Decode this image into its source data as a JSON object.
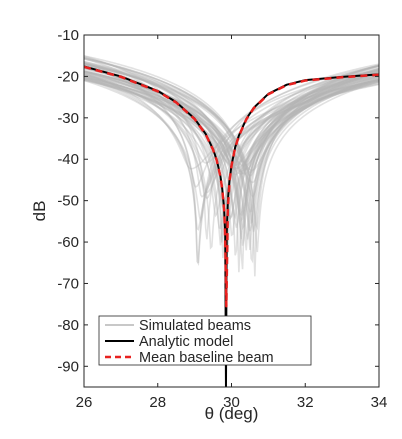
{
  "chart_data": {
    "type": "line",
    "title": "",
    "xlabel": "θ (deg)",
    "ylabel": "dB",
    "xlim": [
      26,
      34
    ],
    "ylim": [
      -95,
      -10
    ],
    "xticks": [
      26,
      28,
      30,
      32,
      34
    ],
    "yticks": [
      -90,
      -80,
      -70,
      -60,
      -50,
      -40,
      -30,
      -20,
      -10
    ],
    "grid": false,
    "legend_position": "bottom-left",
    "notch_center": 29.85,
    "series": [
      {
        "name": "Simulated beams",
        "style": "solid",
        "color": "#b3b3b3",
        "count": 60,
        "notch_range": [
          28.9,
          30.7
        ],
        "min_db_range": [
          -69,
          -40
        ],
        "y_at_26_range": [
          -21,
          -15
        ],
        "y_at_34_range": [
          -22,
          -17
        ]
      },
      {
        "name": "Analytic model",
        "style": "solid",
        "color": "#000000",
        "x": [
          26,
          27,
          28,
          28.5,
          29,
          29.3,
          29.5,
          29.6,
          29.7,
          29.75,
          29.8,
          29.83,
          29.85,
          29.87,
          29.9,
          29.95,
          30,
          30.1,
          30.2,
          30.4,
          30.6,
          31,
          31.5,
          32,
          33,
          34
        ],
        "y": [
          -17.6,
          -20.0,
          -23.5,
          -26.2,
          -30.2,
          -33.9,
          -37.6,
          -40.2,
          -44.1,
          -47.2,
          -52.0,
          -58.0,
          -95,
          -58.0,
          -50.2,
          -44.7,
          -41.5,
          -37.1,
          -34.3,
          -30.3,
          -27.6,
          -24.2,
          -22.0,
          -20.9,
          -20.1,
          -19.5
        ]
      },
      {
        "name": "Mean baseline beam",
        "style": "dashed",
        "color": "#e8211f",
        "x": [
          26,
          27,
          28,
          28.5,
          29,
          29.3,
          29.5,
          29.6,
          29.7,
          29.75,
          29.8,
          29.82,
          29.84,
          29.86,
          29.88,
          29.9,
          29.95,
          30,
          30.1,
          30.2,
          30.4,
          30.6,
          31,
          31.5,
          32,
          33,
          34
        ],
        "y": [
          -17.7,
          -20.1,
          -23.6,
          -26.3,
          -30.3,
          -34.0,
          -37.7,
          -40.3,
          -44.2,
          -47.3,
          -52.2,
          -56.0,
          -64.0,
          -75.5,
          -64.0,
          -52.0,
          -45.0,
          -41.6,
          -37.2,
          -34.4,
          -30.4,
          -27.7,
          -24.3,
          -22.1,
          -21.0,
          -20.2,
          -19.6
        ]
      }
    ]
  }
}
